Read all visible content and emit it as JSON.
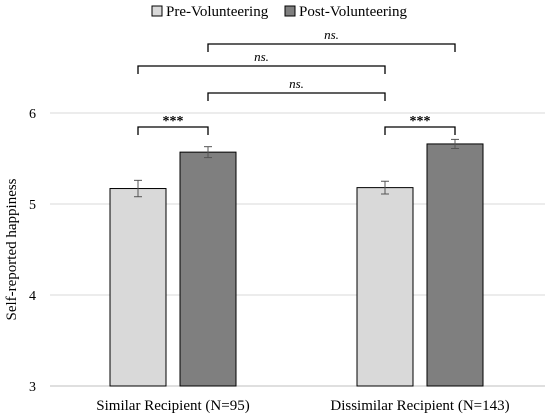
{
  "chart_data": {
    "type": "bar",
    "ylabel": "Self-reported happiness",
    "xlabel": "",
    "ylim": [
      3,
      6
    ],
    "yticks": [
      "3",
      "4",
      "5",
      "6"
    ],
    "grid": true,
    "legend_position": "top-center",
    "categories": [
      "Similar Recipient (N=95)",
      "Dissimilar Recipient (N=143)"
    ],
    "series": [
      {
        "name": "Pre-Volunteering",
        "color": "#d9d9d9",
        "values": [
          5.17,
          5.18
        ],
        "errors": [
          0.09,
          0.07
        ]
      },
      {
        "name": "Post-Volunteering",
        "color": "#7f7f7f",
        "values": [
          5.57,
          5.66
        ],
        "errors": [
          0.06,
          0.05
        ]
      }
    ],
    "annotations": [
      {
        "from": [
          0,
          0
        ],
        "to": [
          0,
          1
        ],
        "label": "***"
      },
      {
        "from": [
          1,
          0
        ],
        "to": [
          1,
          1
        ],
        "label": "***"
      },
      {
        "from": [
          0,
          1
        ],
        "to": [
          1,
          0
        ],
        "label": "ns."
      },
      {
        "from": [
          0,
          0
        ],
        "to": [
          1,
          0
        ],
        "label": "ns."
      },
      {
        "from": [
          0,
          1
        ],
        "to": [
          1,
          1
        ],
        "label": "ns."
      }
    ]
  }
}
